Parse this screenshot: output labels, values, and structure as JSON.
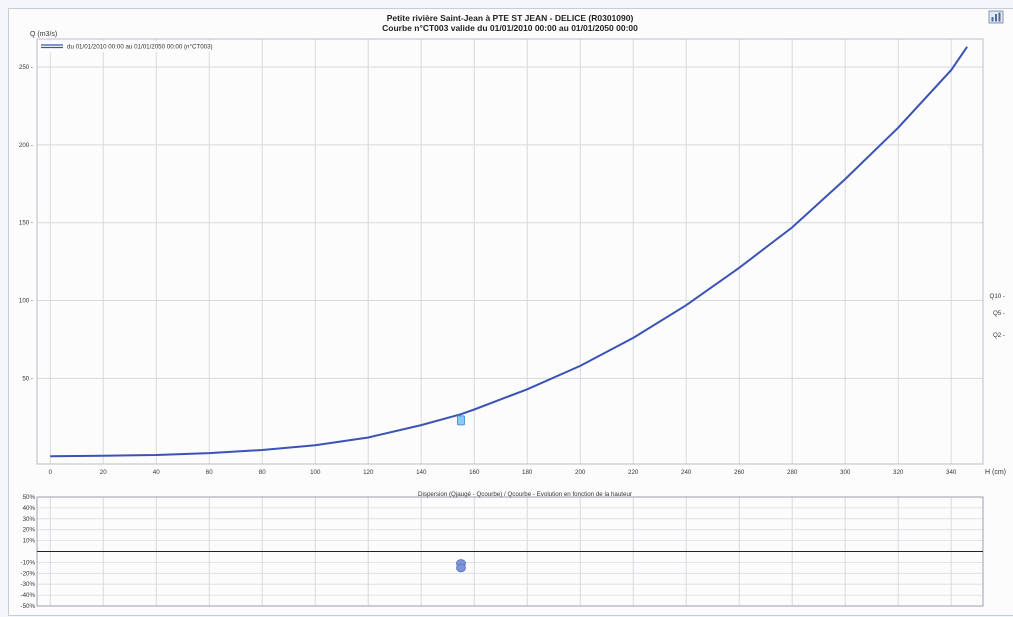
{
  "title_line1": "Petite rivière Saint-Jean à PTE ST JEAN - DELICE (R0301090)",
  "title_line2": "Courbe n°CT003 valide du 01/01/2010 00:00 au 01/01/2050 00:00",
  "toolbar_icon": "chart-settings-icon",
  "chart_data": [
    {
      "type": "line",
      "ylabel": "Q (m3/s)",
      "xlabel": "H (cm)",
      "xlim": [
        -5,
        352
      ],
      "ylim": [
        -5,
        268
      ],
      "x_ticks": [
        0,
        20,
        40,
        60,
        80,
        100,
        120,
        140,
        160,
        180,
        200,
        220,
        240,
        260,
        280,
        300,
        320,
        340
      ],
      "y_ticks": [
        50,
        100,
        150,
        200,
        250
      ],
      "grid": true,
      "legend_position": "top-left",
      "series": [
        {
          "name": "du 01/01/2010 00:00 au 01/01/2050 00:00 (n°CT003)",
          "color": "#3a53b4",
          "x": [
            0,
            20,
            40,
            60,
            80,
            100,
            120,
            140,
            155,
            160,
            180,
            200,
            220,
            240,
            260,
            280,
            300,
            320,
            340,
            346
          ],
          "y": [
            0,
            0.3,
            0.8,
            2,
            4,
            7,
            12,
            20,
            27,
            30,
            43,
            58,
            76,
            97,
            121,
            147,
            178,
            211,
            248,
            263
          ]
        }
      ],
      "gauging_points": [
        {
          "x": 155,
          "y": 23
        }
      ],
      "quantile_labels": [
        {
          "label": "Q10",
          "y": 103
        },
        {
          "label": "Q5",
          "y": 92
        },
        {
          "label": "Q2",
          "y": 78
        }
      ]
    },
    {
      "type": "scatter",
      "title": "Dispersion (Qjaugé - Qcourbe) / Qcourbe  -  Evolution en fonction de la hauteur",
      "ylim": [
        -50,
        50
      ],
      "y_ticks": [
        50,
        40,
        30,
        20,
        10,
        -10,
        -20,
        -30,
        -40,
        -50
      ],
      "y_tick_labels": [
        "50%",
        "40%",
        "30%",
        "20%",
        "10%",
        "-10%",
        "-20%",
        "-30%",
        "-40%",
        "-50%"
      ],
      "grid": true,
      "points": [
        {
          "x": 155,
          "y": -11
        },
        {
          "x": 155,
          "y": -15
        }
      ]
    }
  ]
}
